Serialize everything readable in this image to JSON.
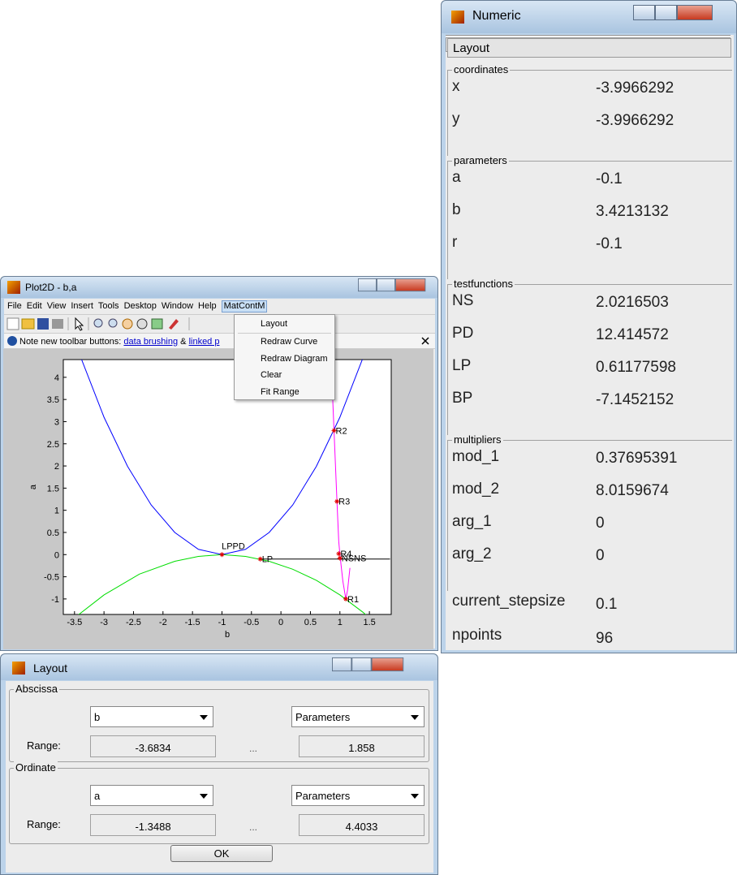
{
  "numeric": {
    "title": "Numeric",
    "menu": "Layout",
    "sections": [
      {
        "title": "coordinates",
        "rows": [
          [
            "x",
            "-3.9966292"
          ],
          [
            "y",
            "-3.9966292"
          ]
        ]
      },
      {
        "title": "parameters",
        "rows": [
          [
            "a",
            "-0.1"
          ],
          [
            "b",
            "3.4213132"
          ],
          [
            "r",
            "-0.1"
          ]
        ]
      },
      {
        "title": "testfunctions",
        "rows": [
          [
            "NS",
            "2.0216503"
          ],
          [
            "PD",
            "12.414572"
          ],
          [
            "LP",
            "0.61177598"
          ],
          [
            "BP",
            "-7.1452152"
          ]
        ]
      },
      {
        "title": "multipliers",
        "rows": [
          [
            "mod_1",
            "0.37695391"
          ],
          [
            "mod_2",
            "8.0159674"
          ],
          [
            "arg_1",
            "0"
          ],
          [
            "arg_2",
            "0"
          ]
        ]
      }
    ],
    "footer_rows": [
      [
        "current_stepsize",
        "0.1"
      ],
      [
        "npoints",
        "96"
      ]
    ]
  },
  "plot2d": {
    "title": "Plot2D - b,a",
    "menu": [
      "File",
      "Edit",
      "View",
      "Insert",
      "Tools",
      "Desktop",
      "Window",
      "Help",
      "MatContM"
    ],
    "dropdown": [
      "Layout",
      "Redraw Curve",
      "Redraw Diagram",
      "Clear",
      "Fit Range"
    ],
    "note": {
      "text": "Note new toolbar buttons:",
      "link1": "data brushing",
      "amp": "&",
      "link2": "linked p"
    },
    "chart": {
      "xlabel": "b",
      "ylabel": "a",
      "xlim": [
        -3.69,
        1.87
      ],
      "ylim": [
        -1.35,
        4.4
      ],
      "xticks": [
        -3.5,
        -3,
        -2.5,
        -2,
        -1.5,
        -1,
        -0.5,
        0,
        0.5,
        1,
        1.5
      ],
      "yticks": [
        -1,
        -0.5,
        0,
        0.5,
        1,
        1.5,
        2,
        2.5,
        3,
        3.5,
        4
      ],
      "curves": [
        {
          "color": "#0000ff",
          "b": [
            -3.4,
            -3.0,
            -2.6,
            -2.2,
            -1.8,
            -1.4,
            -1.0,
            -0.6,
            -0.2,
            0.2,
            0.6,
            1.0,
            1.4
          ],
          "a": [
            4.47,
            3.1,
            1.99,
            1.12,
            0.5,
            0.12,
            0,
            0.12,
            0.5,
            1.12,
            1.99,
            3.1,
            4.47
          ]
        },
        {
          "color": "#00dd00",
          "b": [
            -3.6,
            -3.0,
            -2.4,
            -1.8,
            -1.4,
            -1.0,
            -0.6,
            -0.2,
            0.2,
            0.6,
            1.0,
            1.4,
            1.8
          ],
          "a": [
            -1.53,
            -0.91,
            -0.44,
            -0.15,
            -0.04,
            0,
            -0.04,
            -0.15,
            -0.33,
            -0.58,
            -0.91,
            -1.31,
            -1.81
          ]
        },
        {
          "color": "#ff00ff",
          "b": [
            0.85,
            0.9,
            0.95,
            0.98,
            1.0,
            1.05,
            1.1,
            1.13,
            1.17
          ],
          "a": [
            4.4,
            2.8,
            1.2,
            0.3,
            0,
            -0.6,
            -1,
            -0.8,
            -0.3
          ]
        },
        {
          "color": "#000000",
          "b": [
            -0.35,
            1.85
          ],
          "a": [
            -0.1,
            -0.1
          ]
        }
      ],
      "points": [
        {
          "label": "LPPD",
          "b": -1,
          "a": 0
        },
        {
          "label": "LP",
          "b": -0.35,
          "a": -0.1
        },
        {
          "label": "R2",
          "b": 0.9,
          "a": 2.8
        },
        {
          "label": "R3",
          "b": 0.95,
          "a": 1.2
        },
        {
          "label": "R4",
          "b": 0.98,
          "a": 0.02
        },
        {
          "label": "NSNS",
          "b": 1.0,
          "a": -0.08
        },
        {
          "label": "R1",
          "b": 1.1,
          "a": -1
        }
      ]
    }
  },
  "layout": {
    "title": "Layout",
    "abscissa": {
      "title": "Abscissa",
      "variable": "b",
      "kind": "Parameters",
      "range_label": "Range:",
      "min": "-3.6834",
      "dots": "...",
      "max": "1.858"
    },
    "ordinate": {
      "title": "Ordinate",
      "variable": "a",
      "kind": "Parameters",
      "range_label": "Range:",
      "min": "-1.3488",
      "dots": "...",
      "max": "4.4033"
    },
    "ok": "OK"
  }
}
